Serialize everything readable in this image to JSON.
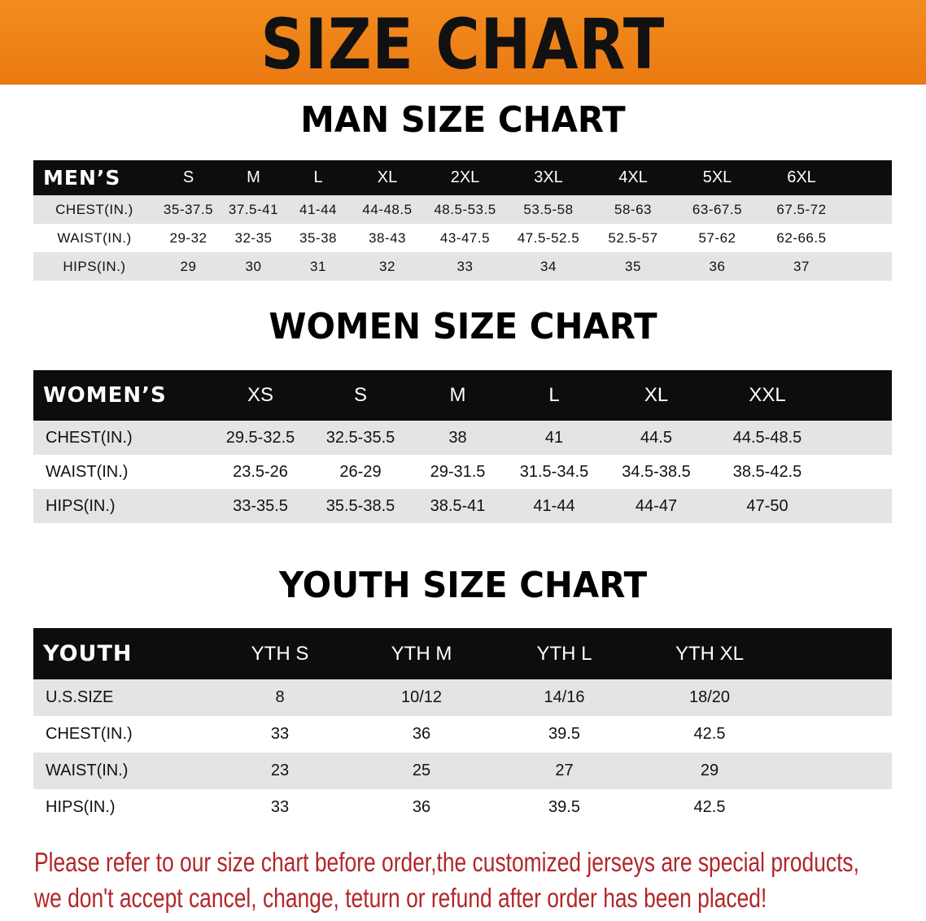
{
  "banner": {
    "title": "SIZE CHART"
  },
  "men": {
    "title": "MAN SIZE CHART",
    "header": [
      "MEN’S",
      "S",
      "M",
      "L",
      "XL",
      "2XL",
      "3XL",
      "4XL",
      "5XL",
      "6XL"
    ],
    "rows": [
      [
        "CHEST(IN.)",
        "35-37.5",
        "37.5-41",
        "41-44",
        "44-48.5",
        "48.5-53.5",
        "53.5-58",
        "58-63",
        "63-67.5",
        "67.5-72"
      ],
      [
        "WAIST(IN.)",
        "29-32",
        "32-35",
        "35-38",
        "38-43",
        "43-47.5",
        "47.5-52.5",
        "52.5-57",
        "57-62",
        "62-66.5"
      ],
      [
        "HIPS(IN.)",
        "29",
        "30",
        "31",
        "32",
        "33",
        "34",
        "35",
        "36",
        "37"
      ]
    ]
  },
  "women": {
    "title": "WOMEN SIZE CHART",
    "header": [
      "WOMEN’S",
      "XS",
      "S",
      "M",
      "L",
      "XL",
      "XXL"
    ],
    "rows": [
      [
        "CHEST(IN.)",
        "29.5-32.5",
        "32.5-35.5",
        "38",
        "41",
        "44.5",
        "44.5-48.5"
      ],
      [
        "WAIST(IN.)",
        "23.5-26",
        "26-29",
        "29-31.5",
        "31.5-34.5",
        "34.5-38.5",
        "38.5-42.5"
      ],
      [
        "HIPS(IN.)",
        "33-35.5",
        "35.5-38.5",
        "38.5-41",
        "41-44",
        "44-47",
        "47-50"
      ]
    ]
  },
  "youth": {
    "title": "YOUTH SIZE CHART",
    "header": [
      "YOUTH",
      "YTH S",
      "YTH M",
      "YTH L",
      "YTH XL"
    ],
    "rows": [
      [
        "U.S.SIZE",
        "8",
        "10/12",
        "14/16",
        "18/20"
      ],
      [
        "CHEST(IN.)",
        "33",
        "36",
        "39.5",
        "42.5"
      ],
      [
        "WAIST(IN.)",
        "23",
        "25",
        "27",
        "29"
      ],
      [
        "HIPS(IN.)",
        "33",
        "36",
        "39.5",
        "42.5"
      ]
    ]
  },
  "note": {
    "line1": "Please refer to our size chart before order,the customized jerseys are special products,",
    "line2": "we don't accept cancel, change, teturn or refund after order has been placed!"
  },
  "colors": {
    "banner": "#f28c1e",
    "header": "#0d0d0d",
    "note": "#b2262a"
  }
}
